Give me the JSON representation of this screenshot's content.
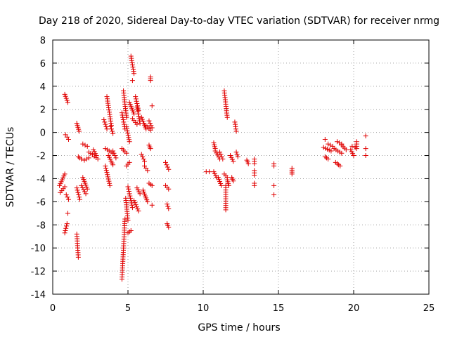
{
  "chart_data": {
    "type": "scatter",
    "title": "Day 218 of 2020, Sidereal Day-to-day VTEC variation (SDTVAR) for receiver nrmg",
    "xlabel": "GPS time / hours",
    "ylabel": "SDTVAR / TECUs",
    "xlim": [
      0,
      25
    ],
    "ylim": [
      -14,
      8
    ],
    "xticks": [
      0,
      5,
      10,
      15,
      20,
      25
    ],
    "yticks": [
      -14,
      -12,
      -10,
      -8,
      -6,
      -4,
      -2,
      0,
      2,
      4,
      6,
      8
    ],
    "grid": true,
    "marker": "+",
    "marker_color": "#e00000",
    "segments": [
      [
        0.45,
        -4.6,
        0.8,
        -3.6
      ],
      [
        0.5,
        -5.2,
        0.8,
        -4.7
      ],
      [
        0.8,
        -8.7,
        0.95,
        -7.9
      ],
      [
        0.8,
        3.3,
        1.0,
        2.6
      ],
      [
        0.85,
        -0.2,
        1.05,
        -0.6
      ],
      [
        0.9,
        -5.4,
        1.05,
        -5.8
      ],
      [
        1.0,
        -7.0,
        1.0,
        -7.0
      ],
      [
        1.6,
        0.8,
        1.75,
        0.1
      ],
      [
        1.6,
        -8.8,
        1.7,
        -10.8
      ],
      [
        1.6,
        -4.8,
        1.8,
        -5.8
      ],
      [
        1.7,
        -2.1,
        1.9,
        -2.3
      ],
      [
        1.9,
        -4.6,
        2.2,
        -5.3
      ],
      [
        2.0,
        -1.0,
        2.3,
        -1.2
      ],
      [
        2.0,
        -3.9,
        2.3,
        -4.9
      ],
      [
        2.1,
        -2.4,
        2.4,
        -2.2
      ],
      [
        2.4,
        -1.7,
        3.0,
        -2.3
      ],
      [
        2.7,
        -1.5,
        2.9,
        -2.0
      ],
      [
        3.4,
        1.1,
        3.6,
        0.3
      ],
      [
        3.5,
        -1.4,
        4.0,
        -1.8
      ],
      [
        3.5,
        -2.9,
        3.8,
        -4.6
      ],
      [
        3.6,
        3.1,
        3.9,
        0.6
      ],
      [
        3.7,
        -2.0,
        4.0,
        -2.8
      ],
      [
        3.85,
        0.5,
        4.0,
        -0.1
      ],
      [
        4.0,
        -1.6,
        4.2,
        -2.2
      ],
      [
        4.6,
        1.7,
        4.8,
        0.3
      ],
      [
        4.6,
        -1.4,
        4.9,
        -1.8
      ],
      [
        4.7,
        3.6,
        4.9,
        1.3
      ],
      [
        4.8,
        -7.5,
        4.6,
        -12.7
      ],
      [
        4.85,
        -5.7,
        5.0,
        -7.6
      ],
      [
        4.9,
        0.5,
        5.1,
        -0.8
      ],
      [
        4.9,
        -2.9,
        5.1,
        -2.6
      ],
      [
        5.0,
        -4.7,
        5.3,
        -6.5
      ],
      [
        5.0,
        -8.7,
        5.2,
        -8.5
      ],
      [
        5.1,
        2.6,
        5.4,
        1.6
      ],
      [
        5.2,
        6.6,
        5.4,
        5.1
      ],
      [
        5.3,
        4.5,
        5.3,
        4.5
      ],
      [
        5.3,
        1.2,
        5.6,
        0.7
      ],
      [
        5.4,
        -5.9,
        5.7,
        -6.8
      ],
      [
        5.5,
        3.1,
        5.7,
        1.9
      ],
      [
        5.6,
        2.2,
        5.8,
        0.8
      ],
      [
        5.6,
        -4.8,
        5.8,
        -5.3
      ],
      [
        5.9,
        1.3,
        6.2,
        0.3
      ],
      [
        5.9,
        -1.9,
        6.1,
        -2.5
      ],
      [
        6.0,
        -5.0,
        6.3,
        -6.0
      ],
      [
        6.1,
        -2.9,
        6.3,
        -3.3
      ],
      [
        6.2,
        0.6,
        6.5,
        0.2
      ],
      [
        6.4,
        -4.4,
        6.6,
        -4.6
      ],
      [
        6.4,
        -1.1,
        6.5,
        -1.4
      ],
      [
        6.4,
        1.0,
        6.6,
        0.4
      ],
      [
        6.5,
        4.8,
        6.5,
        4.5
      ],
      [
        6.6,
        -6.3,
        6.6,
        -6.3
      ],
      [
        6.6,
        2.3,
        6.6,
        2.3
      ],
      [
        7.5,
        -2.6,
        7.7,
        -3.2
      ],
      [
        7.5,
        -4.6,
        7.7,
        -4.9
      ],
      [
        7.6,
        -6.2,
        7.7,
        -6.6
      ],
      [
        7.6,
        -7.9,
        7.7,
        -8.2
      ],
      [
        10.2,
        -3.4,
        10.4,
        -3.4
      ],
      [
        10.7,
        -0.9,
        10.8,
        -1.4
      ],
      [
        10.7,
        -3.4,
        10.9,
        -3.9
      ],
      [
        10.8,
        -1.6,
        11.1,
        -2.3
      ],
      [
        11.0,
        -3.9,
        11.2,
        -4.6
      ],
      [
        11.1,
        -1.7,
        11.3,
        -2.3
      ],
      [
        11.4,
        3.6,
        11.6,
        1.3
      ],
      [
        11.4,
        -3.6,
        11.6,
        -3.9
      ],
      [
        11.5,
        -4.6,
        11.5,
        -6.7
      ],
      [
        11.6,
        -4.1,
        11.7,
        -4.6
      ],
      [
        11.8,
        -2.0,
        12.0,
        -2.5
      ],
      [
        11.9,
        -3.9,
        12.0,
        -4.2
      ],
      [
        12.1,
        0.9,
        12.2,
        0.1
      ],
      [
        12.2,
        -1.7,
        12.3,
        -2.1
      ],
      [
        12.9,
        -2.4,
        13.0,
        -2.7
      ],
      [
        13.4,
        -2.3,
        13.4,
        -2.7
      ],
      [
        13.4,
        -3.3,
        13.4,
        -3.7
      ],
      [
        13.4,
        -4.4,
        13.4,
        -4.6
      ],
      [
        14.7,
        -2.7,
        14.7,
        -2.9
      ],
      [
        14.7,
        -4.6,
        14.7,
        -4.6
      ],
      [
        14.7,
        -5.4,
        14.7,
        -5.4
      ],
      [
        15.9,
        -3.1,
        15.9,
        -3.6
      ],
      [
        18.1,
        -0.6,
        18.1,
        -0.6
      ],
      [
        18.0,
        -1.3,
        18.5,
        -1.6
      ],
      [
        18.1,
        -2.1,
        18.3,
        -2.3
      ],
      [
        18.3,
        -1.0,
        18.6,
        -1.2
      ],
      [
        18.7,
        -1.4,
        19.2,
        -1.8
      ],
      [
        18.8,
        -2.6,
        19.1,
        -2.9
      ],
      [
        18.9,
        -0.8,
        19.2,
        -1.0
      ],
      [
        19.2,
        -1.1,
        19.5,
        -1.5
      ],
      [
        19.8,
        -1.5,
        20.0,
        -2.0
      ],
      [
        19.9,
        -1.2,
        20.1,
        -1.3
      ],
      [
        20.2,
        -0.8,
        20.2,
        -1.4
      ],
      [
        20.8,
        -0.3,
        20.8,
        -0.3
      ],
      [
        20.8,
        -1.4,
        20.8,
        -1.4
      ],
      [
        20.8,
        -2.0,
        20.8,
        -2.0
      ]
    ]
  }
}
